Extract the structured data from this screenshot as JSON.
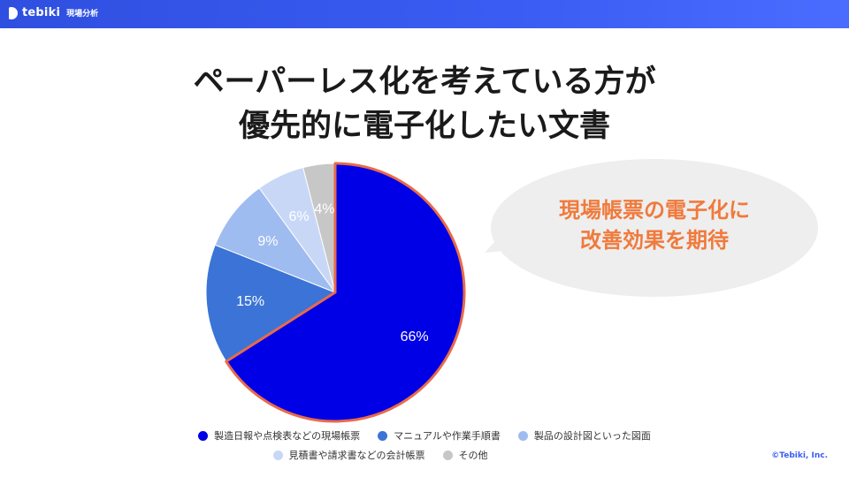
{
  "header": {
    "brand_name": "tebiki",
    "brand_sub": "現場分析"
  },
  "title_lines": [
    "ペーパーレス化を考えている方が",
    "優先的に電子化したい文書"
  ],
  "callout": {
    "lines": [
      "現場帳票の電子化に",
      "改善効果を期待"
    ]
  },
  "copyright": "©Tebiki, Inc.",
  "colors": {
    "slice1": "#0000e6",
    "slice2": "#3b74d6",
    "slice3": "#9fbcf0",
    "slice4": "#c9d7f7",
    "slice5": "#c7c7c7",
    "highlight_border": "#e86a4a",
    "callout_bg": "#eeeeee",
    "callout_text": "#f07a3c"
  },
  "chart_data": {
    "type": "pie",
    "start": "top",
    "direction": "clockwise",
    "categories": [
      "製造日報や点検表などの現場帳票",
      "マニュアルや作業手順書",
      "製品の設計図といった図面",
      "見積書や請求書などの会計帳票",
      "その他"
    ],
    "values": [
      66,
      15,
      9,
      6,
      4
    ],
    "data_labels": [
      "66%",
      "15%",
      "9%",
      "6%",
      "4%"
    ],
    "highlighted": "製造日報や点検表などの現場帳票",
    "legend_position": "bottom"
  }
}
